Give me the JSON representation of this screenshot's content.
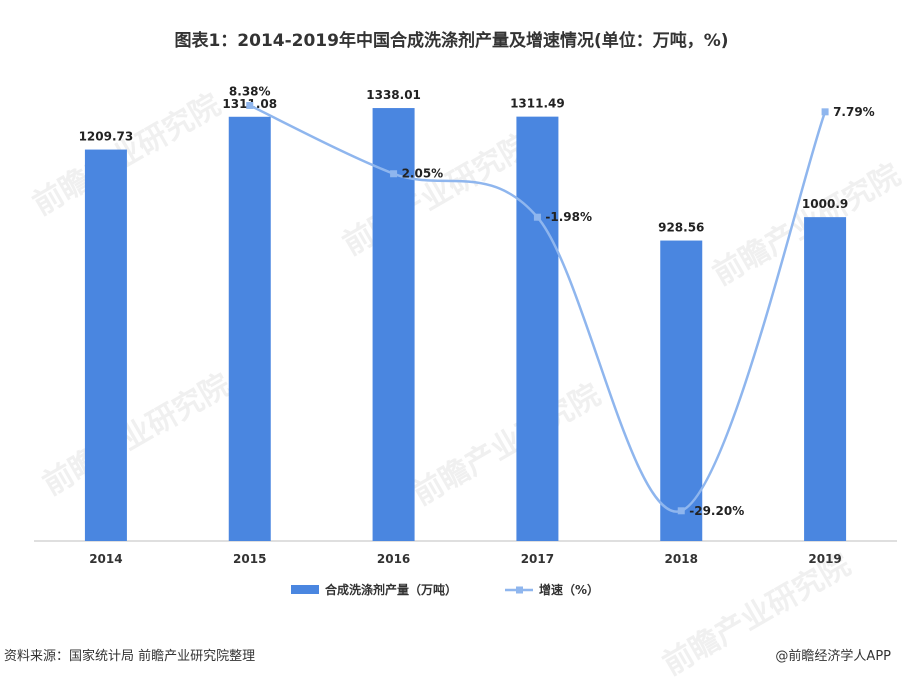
{
  "title": "图表1：2014-2019年中国合成洗涤剂产量及增速情况(单位：万吨，%)",
  "chart_data": {
    "type": "bar",
    "categories": [
      "2014",
      "2015",
      "2016",
      "2017",
      "2018",
      "2019"
    ],
    "series": [
      {
        "name": "合成洗涤剂产量（万吨）",
        "type": "bar",
        "values": [
          1209.73,
          1311.08,
          1338.01,
          1311.49,
          928.56,
          1000.9
        ],
        "labels": [
          "1209.73",
          "1311.08",
          "1338.01",
          "1311.49",
          "928.56",
          "1000.9"
        ],
        "color": "#4a86e0",
        "ylim": [
          0,
          1400
        ]
      },
      {
        "name": "增速（%）",
        "type": "line",
        "x": [
          "2015",
          "2016",
          "2017",
          "2018",
          "2019"
        ],
        "values": [
          8.38,
          2.05,
          -1.98,
          -29.2,
          7.79
        ],
        "labels": [
          "8.38%",
          "2.05%",
          "-1.98%",
          "-29.20%",
          "7.79%"
        ],
        "color": "#8fb6ee",
        "ylim": [
          -32,
          10
        ]
      }
    ],
    "legend_position": "bottom",
    "grid": false
  },
  "footer": {
    "source": "资料来源：国家统计局 前瞻产业研究院整理",
    "credit": "@前瞻经济学人APP"
  },
  "watermark": "前瞻产业研究院"
}
